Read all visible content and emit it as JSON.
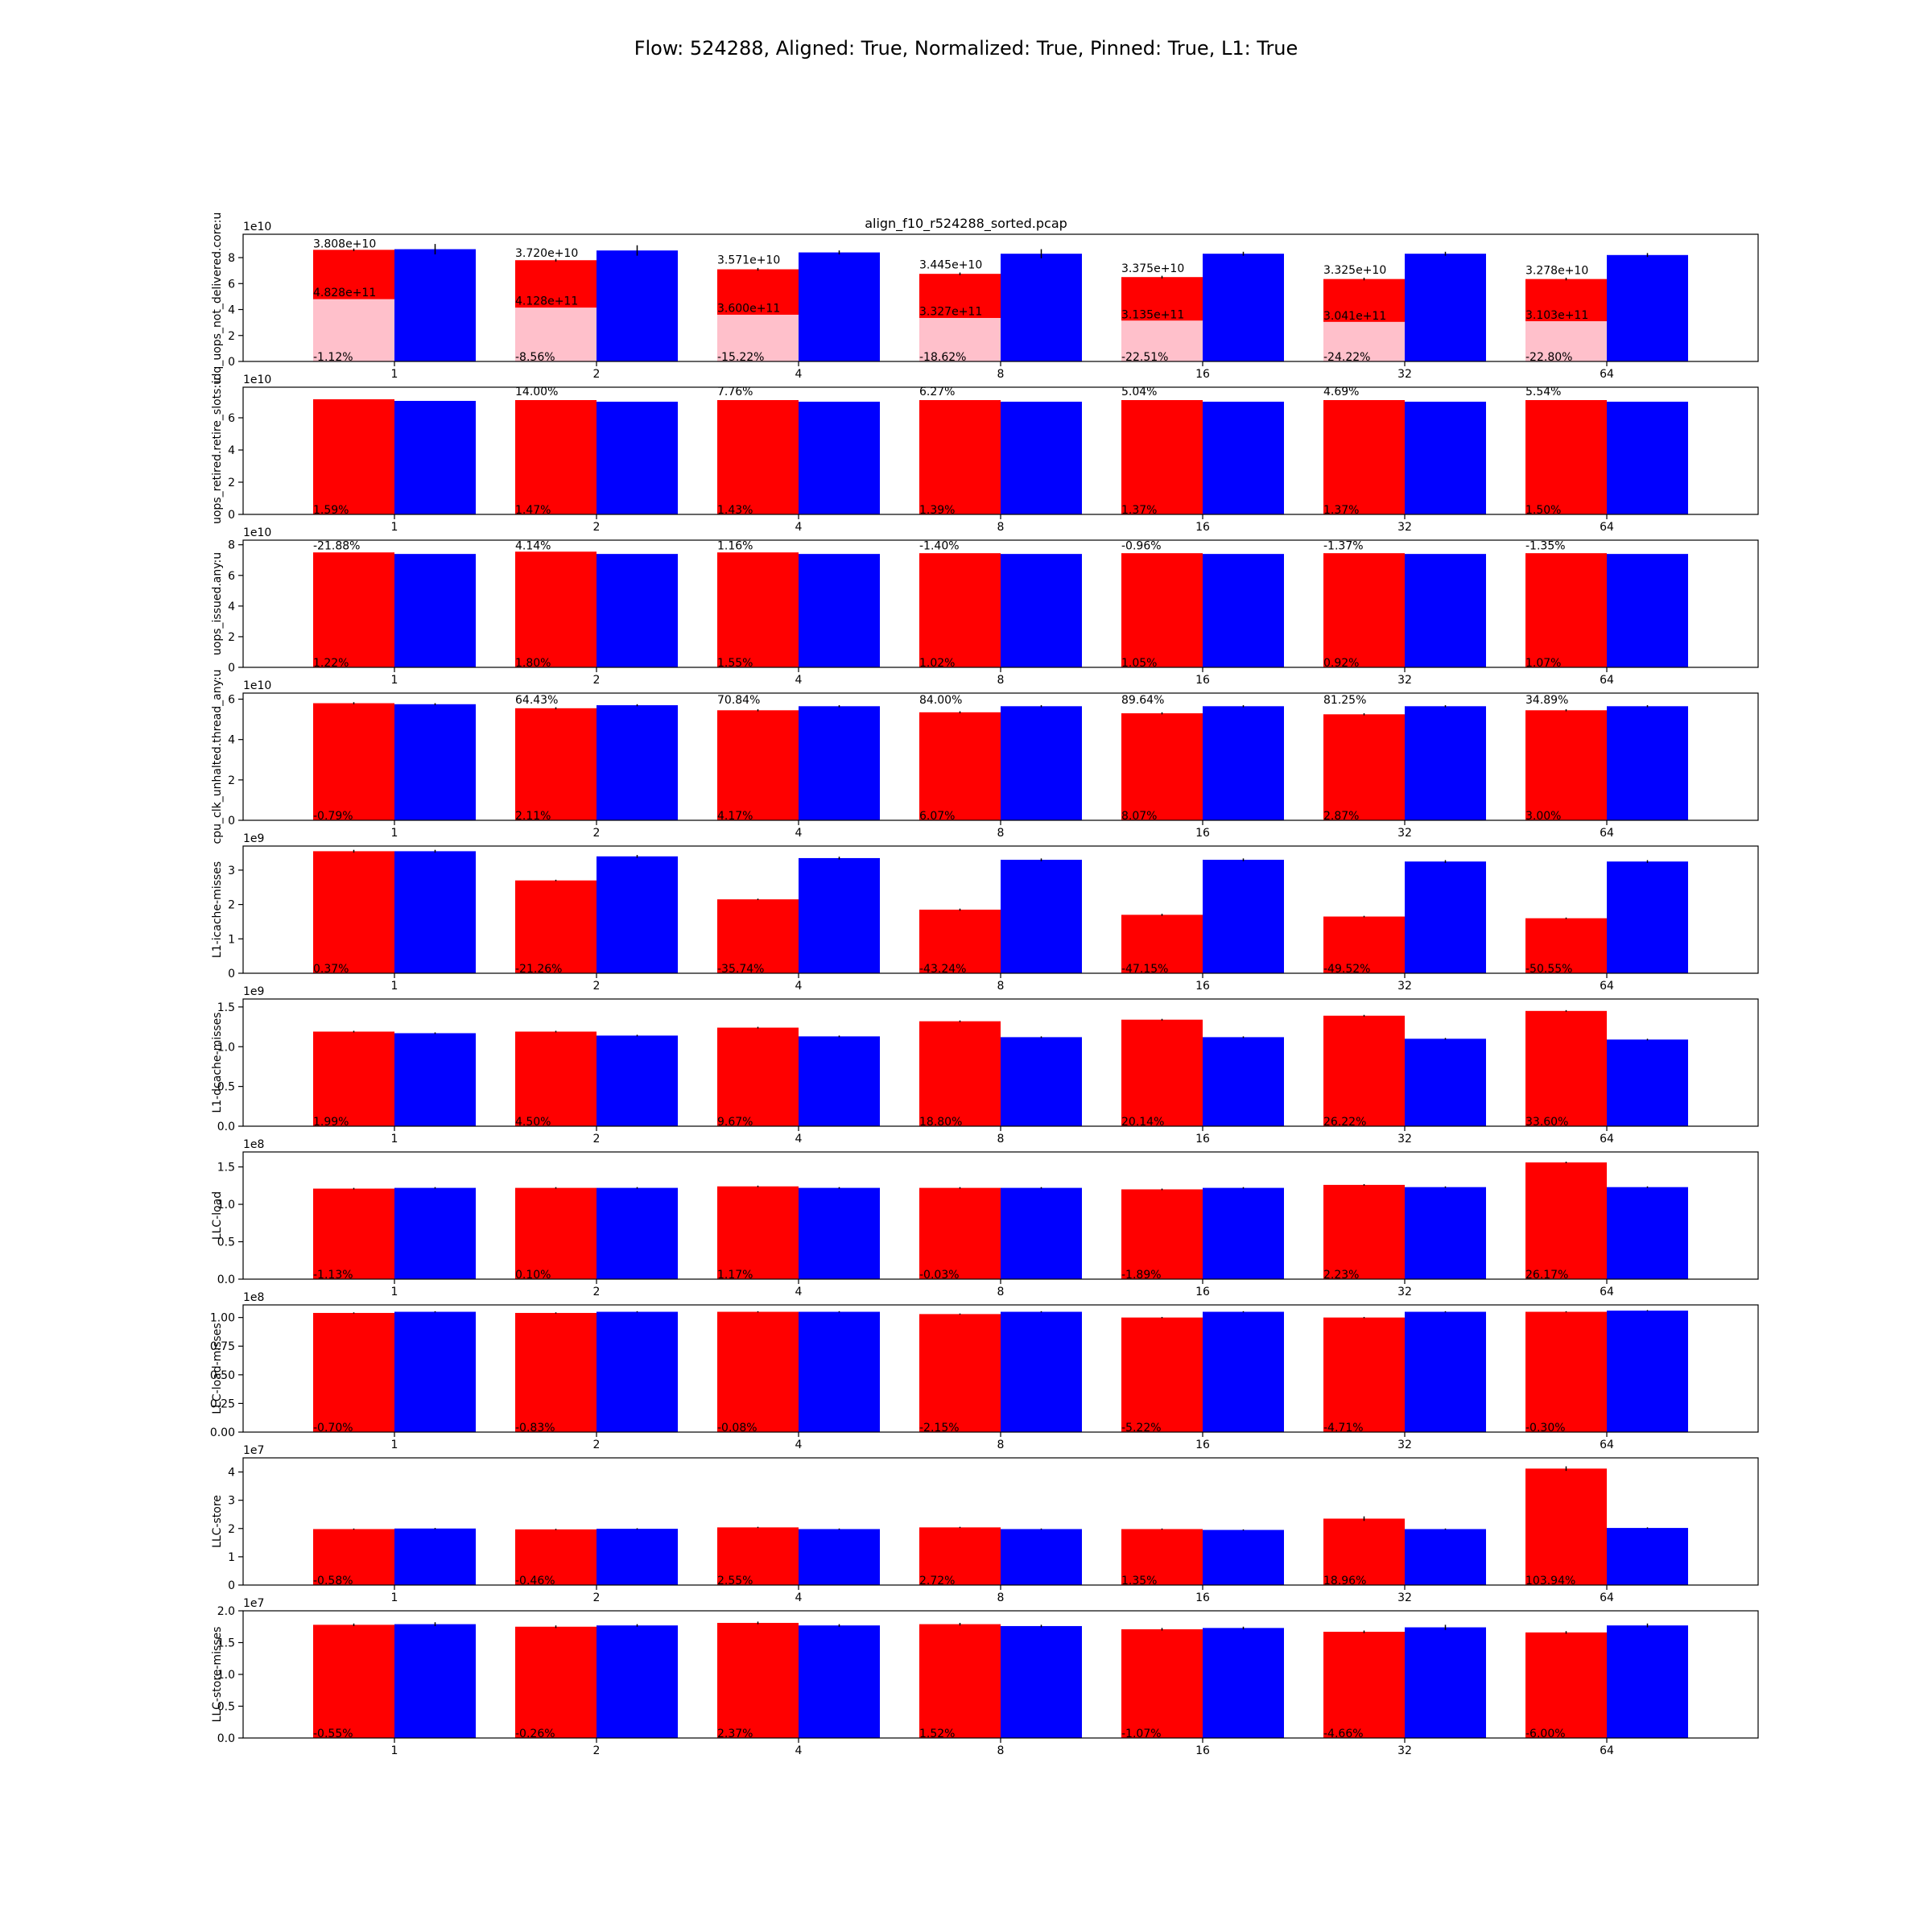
{
  "figure": {
    "suptitle": "Flow: 524288, Aligned: True, Normalized: True, Pinned: True, L1: True",
    "panel_title": "align_f10_r524288_sorted.pcap"
  },
  "chart_data": [
    {
      "type": "bar",
      "ylabel": "idq_uops_not_delivered.core:u",
      "exponent_label": "1e10",
      "scale": 10000000000.0,
      "categories": [
        "1",
        "2",
        "4",
        "8",
        "16",
        "32",
        "64"
      ],
      "ylim": [
        0,
        9.8
      ],
      "yticks": [
        0,
        2,
        4,
        6,
        8
      ],
      "ytick_labels": [
        "0",
        "2",
        "4",
        "6",
        "8"
      ],
      "colors": {
        "red": "#ff0000",
        "blue": "#0000ff",
        "pink": "#ffc0cb"
      },
      "series": [
        {
          "color": "red",
          "values": [
            8.6,
            7.8,
            7.1,
            6.75,
            6.5,
            6.35,
            6.35
          ],
          "errors": [
            0.1,
            0.1,
            0.1,
            0.1,
            0.1,
            0.1,
            0.1
          ]
        },
        {
          "color": "blue",
          "values": [
            8.65,
            8.55,
            8.4,
            8.3,
            8.3,
            8.3,
            8.2
          ],
          "errors": [
            0.4,
            0.4,
            0.15,
            0.35,
            0.15,
            0.15,
            0.15
          ]
        },
        {
          "color": "pink",
          "values": [
            4.8,
            4.15,
            3.6,
            3.35,
            3.15,
            3.05,
            3.1
          ]
        }
      ],
      "bottom_labels": [
        "-1.12%",
        "-8.56%",
        "-15.22%",
        "-18.62%",
        "-22.51%",
        "-24.22%",
        "-22.80%"
      ],
      "top_labels": [
        "3.808e+10",
        "3.720e+10",
        "3.571e+10",
        "3.445e+10",
        "3.375e+10",
        "3.325e+10",
        "3.278e+10"
      ],
      "top_label_y": [
        8.65,
        7.95,
        7.4,
        7.05,
        6.75,
        6.65,
        6.6
      ],
      "mid_labels": [
        "4.828e+11",
        "4.128e+11",
        "3.600e+11",
        "3.327e+11",
        "3.135e+11",
        "3.041e+11",
        "3.103e+11"
      ],
      "mid_label_y": [
        4.9,
        4.25,
        3.7,
        3.45,
        3.2,
        3.1,
        3.15
      ]
    },
    {
      "type": "bar",
      "ylabel": "uops_retired.retire_slots:u",
      "exponent_label": "1e10",
      "scale": 10000000000.0,
      "categories": [
        "1",
        "2",
        "4",
        "8",
        "16",
        "32",
        "64"
      ],
      "ylim": [
        0,
        7.9
      ],
      "yticks": [
        0,
        2,
        4,
        6
      ],
      "ytick_labels": [
        "0",
        "2",
        "4",
        "6"
      ],
      "series": [
        {
          "color": "red",
          "values": [
            7.15,
            7.1,
            7.1,
            7.1,
            7.1,
            7.1,
            7.1
          ],
          "errors": [
            0,
            0,
            0,
            0,
            0,
            0,
            0
          ]
        },
        {
          "color": "blue",
          "values": [
            7.05,
            7.0,
            7.0,
            7.0,
            7.0,
            7.0,
            7.0
          ],
          "errors": [
            0,
            0,
            0,
            0,
            0,
            0,
            0
          ]
        }
      ],
      "bottom_labels": [
        "1.59%",
        "1.47%",
        "1.43%",
        "1.39%",
        "1.37%",
        "1.37%",
        "1.50%"
      ],
      "top_labels": [
        "",
        "14.00%",
        "7.76%",
        "6.27%",
        "5.04%",
        "4.69%",
        "5.54%"
      ],
      "top_label_y": [
        7.3,
        7.3,
        7.3,
        7.3,
        7.3,
        7.3,
        7.3
      ]
    },
    {
      "type": "bar",
      "ylabel": "uops_issued.any:u",
      "exponent_label": "1e10",
      "scale": 10000000000.0,
      "categories": [
        "1",
        "2",
        "4",
        "8",
        "16",
        "32",
        "64"
      ],
      "ylim": [
        0,
        8.3
      ],
      "yticks": [
        0,
        2,
        4,
        6,
        8
      ],
      "ytick_labels": [
        "0",
        "2",
        "4",
        "6",
        "8"
      ],
      "series": [
        {
          "color": "red",
          "values": [
            7.5,
            7.55,
            7.5,
            7.45,
            7.45,
            7.45,
            7.45
          ],
          "errors": [
            0,
            0,
            0,
            0,
            0,
            0,
            0
          ]
        },
        {
          "color": "blue",
          "values": [
            7.4,
            7.4,
            7.4,
            7.4,
            7.4,
            7.4,
            7.4
          ],
          "errors": [
            0,
            0,
            0,
            0,
            0,
            0,
            0
          ]
        }
      ],
      "bottom_labels": [
        "1.22%",
        "1.80%",
        "1.55%",
        "1.02%",
        "1.05%",
        "0.92%",
        "1.07%"
      ],
      "top_labels": [
        "-21.88%",
        "4.14%",
        "1.16%",
        "-1.40%",
        "-0.96%",
        "-1.37%",
        "-1.35%"
      ],
      "top_label_y": [
        7.6,
        7.6,
        7.6,
        7.6,
        7.6,
        7.6,
        7.6
      ]
    },
    {
      "type": "bar",
      "ylabel": "cpu_clk_unhalted.thread_any:u",
      "exponent_label": "1e10",
      "scale": 10000000000.0,
      "categories": [
        "1",
        "2",
        "4",
        "8",
        "16",
        "32",
        "64"
      ],
      "ylim": [
        0,
        6.3
      ],
      "yticks": [
        0,
        2,
        4,
        6
      ],
      "ytick_labels": [
        "0",
        "2",
        "4",
        "6"
      ],
      "series": [
        {
          "color": "red",
          "values": [
            5.8,
            5.55,
            5.45,
            5.35,
            5.3,
            5.25,
            5.45
          ],
          "errors": [
            0.05,
            0.05,
            0.05,
            0.05,
            0.05,
            0.05,
            0.05
          ]
        },
        {
          "color": "blue",
          "values": [
            5.75,
            5.7,
            5.65,
            5.65,
            5.65,
            5.65,
            5.65
          ],
          "errors": [
            0.05,
            0.05,
            0.05,
            0.05,
            0.05,
            0.05,
            0.05
          ]
        }
      ],
      "bottom_labels": [
        "-0.79%",
        "2.11%",
        "4.17%",
        "6.07%",
        "8.07%",
        "2.87%",
        "3.00%"
      ],
      "top_labels": [
        "",
        "64.43%",
        "70.84%",
        "84.00%",
        "89.64%",
        "81.25%",
        "34.89%"
      ],
      "top_label_y": [
        5.7,
        5.7,
        5.7,
        5.7,
        5.7,
        5.7,
        5.7
      ]
    },
    {
      "type": "bar",
      "ylabel": "L1-icache-misses",
      "exponent_label": "1e9",
      "scale": 1000000000.0,
      "categories": [
        "1",
        "2",
        "4",
        "8",
        "16",
        "32",
        "64"
      ],
      "ylim": [
        0,
        3.7
      ],
      "yticks": [
        0,
        1,
        2,
        3
      ],
      "ytick_labels": [
        "0",
        "1",
        "2",
        "3"
      ],
      "series": [
        {
          "color": "red",
          "values": [
            3.55,
            2.7,
            2.15,
            1.85,
            1.7,
            1.65,
            1.6
          ],
          "errors": [
            0.04,
            0.02,
            0.02,
            0.03,
            0.03,
            0.02,
            0.02
          ]
        },
        {
          "color": "blue",
          "values": [
            3.55,
            3.4,
            3.35,
            3.3,
            3.3,
            3.25,
            3.25
          ],
          "errors": [
            0.04,
            0.04,
            0.04,
            0.04,
            0.04,
            0.04,
            0.04
          ]
        }
      ],
      "bottom_labels": [
        "0.37%",
        "-21.26%",
        "-35.74%",
        "-43.24%",
        "-47.15%",
        "-49.52%",
        "-50.55%"
      ]
    },
    {
      "type": "bar",
      "ylabel": "L1-dcache-misses",
      "exponent_label": "1e9",
      "scale": 1000000000.0,
      "categories": [
        "1",
        "2",
        "4",
        "8",
        "16",
        "32",
        "64"
      ],
      "ylim": [
        0,
        1.6
      ],
      "yticks": [
        0,
        0.5,
        1.0,
        1.5
      ],
      "ytick_labels": [
        "0.0",
        "0.5",
        "1.0",
        "1.5"
      ],
      "series": [
        {
          "color": "red",
          "values": [
            1.19,
            1.19,
            1.24,
            1.32,
            1.34,
            1.39,
            1.45
          ],
          "errors": [
            0.01,
            0.01,
            0.01,
            0.01,
            0.01,
            0.01,
            0.01
          ]
        },
        {
          "color": "blue",
          "values": [
            1.17,
            1.14,
            1.13,
            1.12,
            1.12,
            1.1,
            1.09
          ],
          "errors": [
            0.01,
            0.01,
            0.01,
            0.01,
            0.01,
            0.01,
            0.01
          ]
        }
      ],
      "bottom_labels": [
        "1.99%",
        "4.50%",
        "9.67%",
        "18.80%",
        "20.14%",
        "26.22%",
        "33.60%"
      ]
    },
    {
      "type": "bar",
      "ylabel": "LLC-load",
      "exponent_label": "1e8",
      "scale": 100000000.0,
      "categories": [
        "1",
        "2",
        "4",
        "8",
        "16",
        "32",
        "64"
      ],
      "ylim": [
        0,
        1.7
      ],
      "yticks": [
        0,
        0.5,
        1.0,
        1.5
      ],
      "ytick_labels": [
        "0.0",
        "0.5",
        "1.0",
        "1.5"
      ],
      "series": [
        {
          "color": "red",
          "values": [
            1.21,
            1.22,
            1.24,
            1.22,
            1.2,
            1.26,
            1.56
          ],
          "errors": [
            0.01,
            0.01,
            0.01,
            0.01,
            0.01,
            0.01,
            0.01
          ]
        },
        {
          "color": "blue",
          "values": [
            1.22,
            1.22,
            1.22,
            1.22,
            1.22,
            1.23,
            1.23
          ],
          "errors": [
            0.01,
            0.01,
            0.01,
            0.01,
            0.01,
            0.01,
            0.01
          ]
        }
      ],
      "bottom_labels": [
        "-1.13%",
        "0.10%",
        "1.17%",
        "-0.03%",
        "-1.89%",
        "2.23%",
        "26.17%"
      ]
    },
    {
      "type": "bar",
      "ylabel": "LLC-load-misses",
      "exponent_label": "1e8",
      "scale": 100000000.0,
      "categories": [
        "1",
        "2",
        "4",
        "8",
        "16",
        "32",
        "64"
      ],
      "ylim": [
        0,
        1.11
      ],
      "yticks": [
        0,
        0.25,
        0.5,
        0.75,
        1.0
      ],
      "ytick_labels": [
        "0.00",
        "0.25",
        "0.50",
        "0.75",
        "1.00"
      ],
      "series": [
        {
          "color": "red",
          "values": [
            1.04,
            1.04,
            1.05,
            1.03,
            1.0,
            1.0,
            1.05
          ],
          "errors": [
            0.005,
            0.005,
            0.005,
            0.005,
            0.005,
            0.005,
            0.005
          ]
        },
        {
          "color": "blue",
          "values": [
            1.05,
            1.05,
            1.05,
            1.05,
            1.05,
            1.05,
            1.06
          ],
          "errors": [
            0.005,
            0.005,
            0.005,
            0.005,
            0.005,
            0.005,
            0.005
          ]
        }
      ],
      "bottom_labels": [
        "-0.70%",
        "-0.83%",
        "-0.08%",
        "-2.15%",
        "-5.22%",
        "-4.71%",
        "-0.30%"
      ]
    },
    {
      "type": "bar",
      "ylabel": "LLC-store",
      "exponent_label": "1e7",
      "scale": 10000000.0,
      "categories": [
        "1",
        "2",
        "4",
        "8",
        "16",
        "32",
        "64"
      ],
      "ylim": [
        0,
        4.5
      ],
      "yticks": [
        0,
        1,
        2,
        3,
        4
      ],
      "ytick_labels": [
        "0",
        "1",
        "2",
        "3",
        "4"
      ],
      "series": [
        {
          "color": "red",
          "values": [
            1.98,
            1.97,
            2.04,
            2.04,
            1.98,
            2.35,
            4.12
          ],
          "errors": [
            0.02,
            0.02,
            0.02,
            0.02,
            0.02,
            0.08,
            0.08
          ]
        },
        {
          "color": "blue",
          "values": [
            2.0,
            1.99,
            1.98,
            1.98,
            1.95,
            1.98,
            2.02
          ],
          "errors": [
            0.02,
            0.02,
            0.02,
            0.02,
            0.02,
            0.02,
            0.02
          ]
        }
      ],
      "bottom_labels": [
        "-0.58%",
        "-0.46%",
        "2.55%",
        "2.72%",
        "1.35%",
        "18.96%",
        "103.94%"
      ]
    },
    {
      "type": "bar",
      "ylabel": "LLC-store-misses",
      "exponent_label": "1e7",
      "scale": 10000000.0,
      "categories": [
        "1",
        "2",
        "4",
        "8",
        "16",
        "32",
        "64"
      ],
      "ylim": [
        0,
        2.0
      ],
      "yticks": [
        0,
        0.5,
        1.0,
        1.5,
        2.0
      ],
      "ytick_labels": [
        "0.0",
        "0.5",
        "1.0",
        "1.5",
        "2.0"
      ],
      "series": [
        {
          "color": "red",
          "values": [
            1.78,
            1.75,
            1.81,
            1.79,
            1.71,
            1.67,
            1.66
          ],
          "errors": [
            0.02,
            0.02,
            0.02,
            0.02,
            0.02,
            0.02,
            0.02
          ]
        },
        {
          "color": "blue",
          "values": [
            1.79,
            1.77,
            1.77,
            1.76,
            1.73,
            1.74,
            1.77
          ],
          "errors": [
            0.03,
            0.02,
            0.02,
            0.02,
            0.02,
            0.04,
            0.03
          ]
        }
      ],
      "bottom_labels": [
        "-0.55%",
        "-0.26%",
        "2.37%",
        "1.52%",
        "-1.07%",
        "-4.66%",
        "-6.00%"
      ]
    }
  ]
}
